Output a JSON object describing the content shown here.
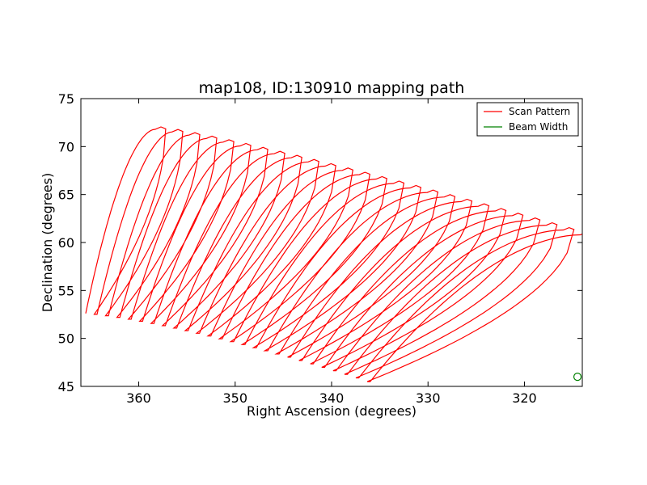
{
  "chart_data": {
    "type": "line",
    "title": "map108, ID:130910 mapping path",
    "xlabel": "Right Ascension (degrees)",
    "ylabel": "Declination (degrees)",
    "xlim": [
      366,
      314
    ],
    "ylim": [
      45,
      75
    ],
    "x_inverted": true,
    "xticks": [
      360,
      350,
      340,
      330,
      320
    ],
    "yticks": [
      45,
      50,
      55,
      60,
      65,
      70,
      75
    ],
    "grid": false,
    "legend_position": "top-right",
    "legend": [
      {
        "label": "Scan Pattern",
        "color": "#ff0000"
      },
      {
        "label": "Beam Width",
        "color": "#008000"
      }
    ],
    "series": [
      {
        "name": "Scan Pattern",
        "color": "#ff0000",
        "scan_count": 26,
        "first_scan": {
          "start": [
            365.5,
            52.6
          ],
          "bottom_mid": [
            364.0,
            52.6
          ],
          "top": [
            358.3,
            71.8
          ]
        },
        "last_scan": {
          "start": [
            336.0,
            45.5
          ],
          "top": [
            314.2,
            60.8
          ]
        }
      },
      {
        "name": "Beam Width",
        "color": "#008000",
        "marker": "circle",
        "points": [
          [
            314.5,
            46.0
          ]
        ]
      }
    ]
  }
}
